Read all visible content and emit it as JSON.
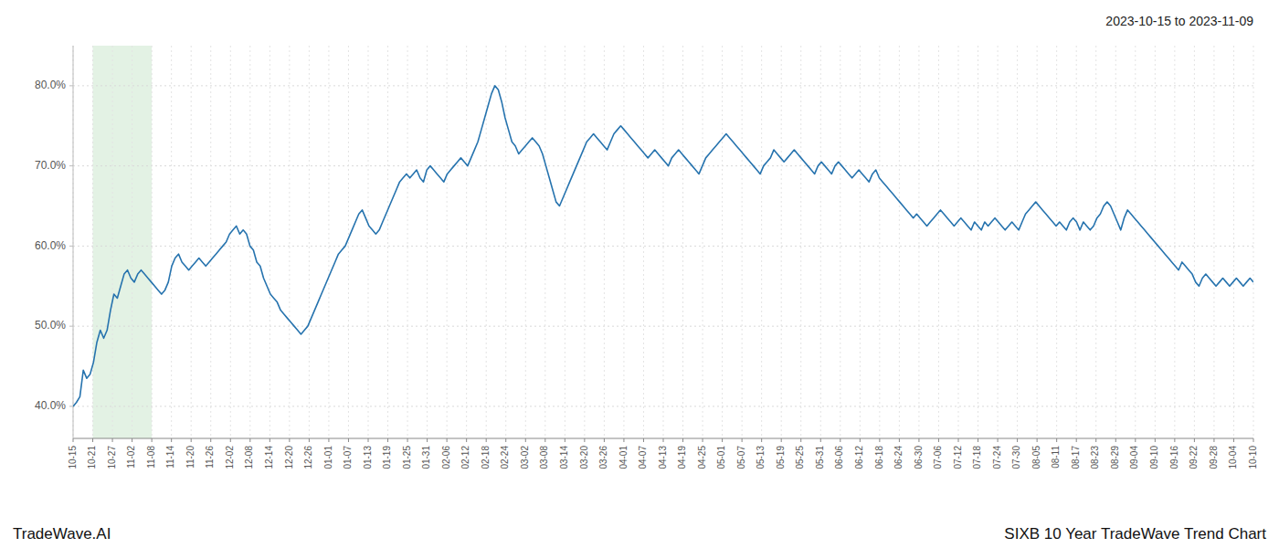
{
  "chart_data": {
    "type": "line",
    "title": "SIXB 10 Year TradeWave Trend Chart",
    "subtitle": "2023-10-15 to 2023-11-09",
    "annotations": [
      "TradeWave.AI"
    ],
    "color": "#2673ae",
    "grid": true,
    "xlim": [
      0,
      347
    ],
    "xticks": [
      {
        "value": 0,
        "label": "10-15"
      },
      {
        "value": 5.7833,
        "label": "10-21"
      },
      {
        "value": 11.5667,
        "label": "10-27"
      },
      {
        "value": 17.35,
        "label": "11-02"
      },
      {
        "value": 23.1333,
        "label": "11-08"
      },
      {
        "value": 28.9167,
        "label": "11-14"
      },
      {
        "value": 34.7,
        "label": "11-20"
      },
      {
        "value": 40.4833,
        "label": "11-26"
      },
      {
        "value": 46.2667,
        "label": "12-02"
      },
      {
        "value": 52.05,
        "label": "12-08"
      },
      {
        "value": 57.8333,
        "label": "12-14"
      },
      {
        "value": 63.6167,
        "label": "12-20"
      },
      {
        "value": 69.4,
        "label": "12-26"
      },
      {
        "value": 75.1833,
        "label": "01-01"
      },
      {
        "value": 80.9667,
        "label": "01-07"
      },
      {
        "value": 86.75,
        "label": "01-13"
      },
      {
        "value": 92.5333,
        "label": "01-19"
      },
      {
        "value": 98.3167,
        "label": "01-25"
      },
      {
        "value": 104.1,
        "label": "01-31"
      },
      {
        "value": 109.8833,
        "label": "02-06"
      },
      {
        "value": 115.6667,
        "label": "02-12"
      },
      {
        "value": 121.45,
        "label": "02-18"
      },
      {
        "value": 127.2333,
        "label": "02-24"
      },
      {
        "value": 133.0167,
        "label": "03-02"
      },
      {
        "value": 138.8,
        "label": "03-08"
      },
      {
        "value": 144.5833,
        "label": "03-14"
      },
      {
        "value": 150.3667,
        "label": "03-20"
      },
      {
        "value": 156.15,
        "label": "03-26"
      },
      {
        "value": 161.9333,
        "label": "04-01"
      },
      {
        "value": 167.7167,
        "label": "04-07"
      },
      {
        "value": 173.5,
        "label": "04-13"
      },
      {
        "value": 179.2833,
        "label": "04-19"
      },
      {
        "value": 185.0667,
        "label": "04-25"
      },
      {
        "value": 190.85,
        "label": "05-01"
      },
      {
        "value": 196.6333,
        "label": "05-07"
      },
      {
        "value": 202.4167,
        "label": "05-13"
      },
      {
        "value": 208.2,
        "label": "05-19"
      },
      {
        "value": 213.9833,
        "label": "05-25"
      },
      {
        "value": 219.7667,
        "label": "05-31"
      },
      {
        "value": 225.55,
        "label": "06-06"
      },
      {
        "value": 231.3333,
        "label": "06-12"
      },
      {
        "value": 237.1167,
        "label": "06-18"
      },
      {
        "value": 242.9,
        "label": "06-24"
      },
      {
        "value": 248.6833,
        "label": "06-30"
      },
      {
        "value": 254.4667,
        "label": "07-06"
      },
      {
        "value": 260.25,
        "label": "07-12"
      },
      {
        "value": 266.0333,
        "label": "07-18"
      },
      {
        "value": 271.8167,
        "label": "07-24"
      },
      {
        "value": 277.6,
        "label": "07-30"
      },
      {
        "value": 283.3833,
        "label": "08-05"
      },
      {
        "value": 289.1667,
        "label": "08-11"
      },
      {
        "value": 294.95,
        "label": "08-17"
      },
      {
        "value": 300.7333,
        "label": "08-23"
      },
      {
        "value": 306.5167,
        "label": "08-29"
      },
      {
        "value": 312.3,
        "label": "09-04"
      },
      {
        "value": 318.0833,
        "label": "09-10"
      },
      {
        "value": 323.8667,
        "label": "09-16"
      },
      {
        "value": 329.65,
        "label": "09-22"
      },
      {
        "value": 335.4333,
        "label": "09-28"
      },
      {
        "value": 341.2167,
        "label": "10-04"
      },
      {
        "value": 347,
        "label": "10-10"
      }
    ],
    "ylim": [
      36.0,
      85.0
    ],
    "yticks": [
      {
        "value": 40.0,
        "label": "40.0%"
      },
      {
        "value": 50.0,
        "label": "50.0%"
      },
      {
        "value": 60.0,
        "label": "60.0%"
      },
      {
        "value": 70.0,
        "label": "70.0%"
      },
      {
        "value": 80.0,
        "label": "80.0%"
      }
    ],
    "shaded_region": {
      "from": 5.7833,
      "to": 23.1333,
      "color": "#c8e6c9"
    },
    "values": [
      40.0,
      40.5,
      41.2,
      44.5,
      43.5,
      44.0,
      45.5,
      48.0,
      49.5,
      48.5,
      49.5,
      52.0,
      54.0,
      53.5,
      55.0,
      56.5,
      57.0,
      56.0,
      55.5,
      56.5,
      57.0,
      56.5,
      56.0,
      55.5,
      55.0,
      54.5,
      54.0,
      54.5,
      55.5,
      57.5,
      58.5,
      59.0,
      58.0,
      57.5,
      57.0,
      57.5,
      58.0,
      58.5,
      58.0,
      57.5,
      58.0,
      58.5,
      59.0,
      59.5,
      60.0,
      60.5,
      61.5,
      62.0,
      62.5,
      61.5,
      62.0,
      61.5,
      60.0,
      59.5,
      58.0,
      57.5,
      56.0,
      55.0,
      54.0,
      53.5,
      53.0,
      52.0,
      51.5,
      51.0,
      50.5,
      50.0,
      49.5,
      49.0,
      49.5,
      50.0,
      51.0,
      52.0,
      53.0,
      54.0,
      55.0,
      56.0,
      57.0,
      58.0,
      59.0,
      59.5,
      60.0,
      61.0,
      62.0,
      63.0,
      64.0,
      64.5,
      63.5,
      62.5,
      62.0,
      61.5,
      62.0,
      63.0,
      64.0,
      65.0,
      66.0,
      67.0,
      68.0,
      68.5,
      69.0,
      68.5,
      69.0,
      69.5,
      68.5,
      68.0,
      69.5,
      70.0,
      69.5,
      69.0,
      68.5,
      68.0,
      69.0,
      69.5,
      70.0,
      70.5,
      71.0,
      70.5,
      70.0,
      71.0,
      72.0,
      73.0,
      74.5,
      76.0,
      77.5,
      79.0,
      80.0,
      79.5,
      78.0,
      76.0,
      74.5,
      73.0,
      72.5,
      71.5,
      72.0,
      72.5,
      73.0,
      73.5,
      73.0,
      72.5,
      71.5,
      70.0,
      68.5,
      67.0,
      65.5,
      65.0,
      66.0,
      67.0,
      68.0,
      69.0,
      70.0,
      71.0,
      72.0,
      73.0,
      73.5,
      74.0,
      73.5,
      73.0,
      72.5,
      72.0,
      73.0,
      74.0,
      74.5,
      75.0,
      74.5,
      74.0,
      73.5,
      73.0,
      72.5,
      72.0,
      71.5,
      71.0,
      71.5,
      72.0,
      71.5,
      71.0,
      70.5,
      70.0,
      71.0,
      71.5,
      72.0,
      71.5,
      71.0,
      70.5,
      70.0,
      69.5,
      69.0,
      70.0,
      71.0,
      71.5,
      72.0,
      72.5,
      73.0,
      73.5,
      74.0,
      73.5,
      73.0,
      72.5,
      72.0,
      71.5,
      71.0,
      70.5,
      70.0,
      69.5,
      69.0,
      70.0,
      70.5,
      71.0,
      72.0,
      71.5,
      71.0,
      70.5,
      71.0,
      71.5,
      72.0,
      71.5,
      71.0,
      70.5,
      70.0,
      69.5,
      69.0,
      70.0,
      70.5,
      70.0,
      69.5,
      69.0,
      70.0,
      70.5,
      70.0,
      69.5,
      69.0,
      68.5,
      69.0,
      69.5,
      69.0,
      68.5,
      68.0,
      69.0,
      69.5,
      68.5,
      68.0,
      67.5,
      67.0,
      66.5,
      66.0,
      65.5,
      65.0,
      64.5,
      64.0,
      63.5,
      64.0,
      63.5,
      63.0,
      62.5,
      63.0,
      63.5,
      64.0,
      64.5,
      64.0,
      63.5,
      63.0,
      62.5,
      63.0,
      63.5,
      63.0,
      62.5,
      62.0,
      63.0,
      62.5,
      62.0,
      63.0,
      62.5,
      63.0,
      63.5,
      63.0,
      62.5,
      62.0,
      62.5,
      63.0,
      62.5,
      62.0,
      63.0,
      64.0,
      64.5,
      65.0,
      65.5,
      65.0,
      64.5,
      64.0,
      63.5,
      63.0,
      62.5,
      63.0,
      62.5,
      62.0,
      63.0,
      63.5,
      63.0,
      62.0,
      63.0,
      62.5,
      62.0,
      62.5,
      63.5,
      64.0,
      65.0,
      65.5,
      65.0,
      64.0,
      63.0,
      62.0,
      63.5,
      64.5,
      64.0,
      63.5,
      63.0,
      62.5,
      62.0,
      61.5,
      61.0,
      60.5,
      60.0,
      59.5,
      59.0,
      58.5,
      58.0,
      57.5,
      57.0,
      58.0,
      57.5,
      57.0,
      56.5,
      55.5,
      55.0,
      56.0,
      56.5,
      56.0,
      55.5,
      55.0,
      55.5,
      56.0,
      55.5,
      55.0,
      55.5,
      56.0,
      55.5,
      55.0,
      55.5,
      56.0,
      55.5
    ]
  }
}
